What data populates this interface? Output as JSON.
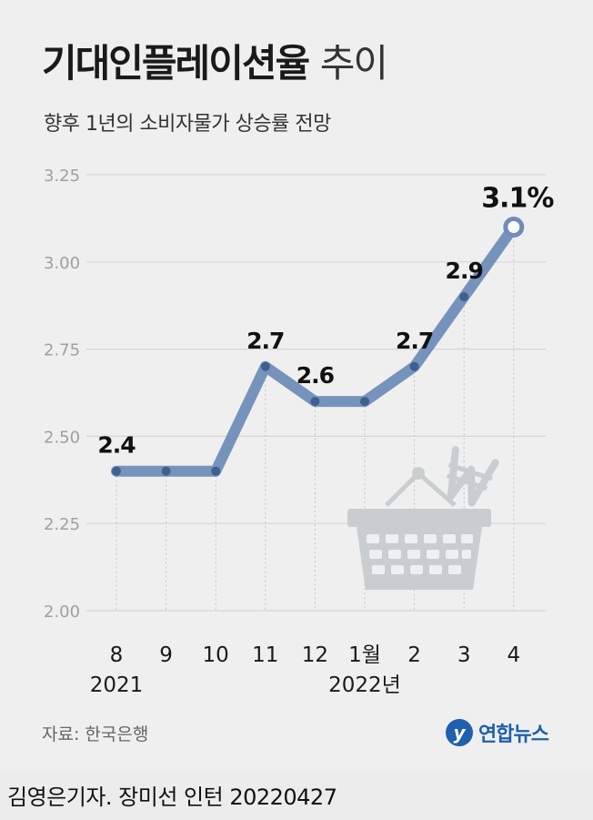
{
  "header": {
    "title_bold": "기대인플레이션율",
    "title_light": "추이",
    "subtitle": "향후 1년의 소비자물가 상승률 전망"
  },
  "chart_data": {
    "type": "line",
    "title": "기대인플레이션율 추이",
    "subtitle": "향후 1년의 소비자물가 상승률 전망",
    "categories": [
      "8",
      "9",
      "10",
      "11",
      "12",
      "1월",
      "2",
      "3",
      "4"
    ],
    "year_labels": [
      {
        "text": "2021",
        "index": 0
      },
      {
        "text": "2022년",
        "index": 5
      }
    ],
    "values": [
      2.4,
      2.4,
      2.4,
      2.7,
      2.6,
      2.6,
      2.7,
      2.9,
      3.1
    ],
    "data_labels": [
      {
        "index": 0,
        "text": "2.4"
      },
      {
        "index": 3,
        "text": "2.7"
      },
      {
        "index": 4,
        "text": "2.6"
      },
      {
        "index": 6,
        "text": "2.7"
      },
      {
        "index": 7,
        "text": "2.9"
      },
      {
        "index": 8,
        "text": "3.1%"
      }
    ],
    "yticks": [
      "2.00",
      "2.25",
      "2.50",
      "2.75",
      "3.00",
      "3.25"
    ],
    "ylim": [
      2.0,
      3.25
    ],
    "grid": true,
    "line_color": "#6f8db8",
    "marker_color": "#3f5f8f"
  },
  "footer": {
    "source": "자료: 한국은행",
    "logo_text": "연합뉴스",
    "credit": "김영은기자. 장미선 인턴 20220427"
  }
}
